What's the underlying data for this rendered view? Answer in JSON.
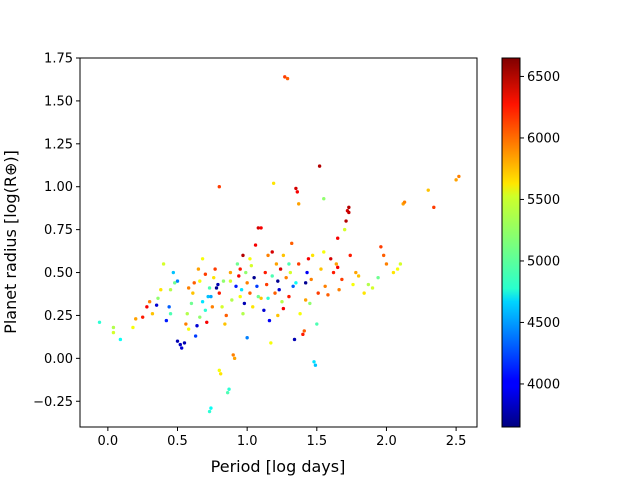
{
  "chart_data": {
    "type": "scatter",
    "xlabel": "Period [log days]",
    "ylabel": "Planet radius [log(R⊕)]",
    "xlim": [
      -0.2,
      2.65
    ],
    "ylim": [
      -0.4,
      1.75
    ],
    "x_ticks": [
      0.0,
      0.5,
      1.0,
      1.5,
      2.0,
      2.5
    ],
    "x_tick_labels": [
      "0.0",
      "0.5",
      "1.0",
      "1.5",
      "2.0",
      "2.5"
    ],
    "y_ticks": [
      -0.25,
      0.0,
      0.25,
      0.5,
      0.75,
      1.0,
      1.25,
      1.5,
      1.75
    ],
    "y_tick_labels": [
      "−0.25",
      "0.00",
      "0.25",
      "0.50",
      "0.75",
      "1.00",
      "1.25",
      "1.50",
      "1.75"
    ],
    "colorbar": {
      "colormap": "jet",
      "range": [
        3650,
        6650
      ],
      "ticks": [
        4000,
        4500,
        5000,
        5500,
        6000,
        6500
      ],
      "tick_labels": [
        "4000",
        "4500",
        "5000",
        "5500",
        "6000",
        "6500"
      ]
    },
    "grid": false,
    "points": [
      [
        -0.06,
        0.21,
        4900
      ],
      [
        0.04,
        0.18,
        5300
      ],
      [
        0.04,
        0.15,
        5400
      ],
      [
        0.09,
        0.11,
        4800
      ],
      [
        0.18,
        0.18,
        5500
      ],
      [
        0.2,
        0.23,
        5800
      ],
      [
        0.25,
        0.24,
        6200
      ],
      [
        0.28,
        0.3,
        6300
      ],
      [
        0.3,
        0.33,
        5900
      ],
      [
        0.32,
        0.26,
        5700
      ],
      [
        0.35,
        0.31,
        3900
      ],
      [
        0.36,
        0.35,
        5200
      ],
      [
        0.38,
        0.4,
        5600
      ],
      [
        0.4,
        0.55,
        5400
      ],
      [
        0.42,
        0.22,
        4100
      ],
      [
        0.44,
        0.3,
        4300
      ],
      [
        0.45,
        0.26,
        5000
      ],
      [
        0.47,
        0.5,
        4600
      ],
      [
        0.48,
        0.44,
        5100
      ],
      [
        0.5,
        0.45,
        4400
      ],
      [
        0.5,
        0.1,
        3800
      ],
      [
        0.52,
        0.08,
        3850
      ],
      [
        0.53,
        0.06,
        3900
      ],
      [
        0.55,
        0.09,
        3800
      ],
      [
        0.56,
        0.2,
        5900
      ],
      [
        0.57,
        0.26,
        5300
      ],
      [
        0.58,
        0.17,
        5500
      ],
      [
        0.6,
        0.32,
        5100
      ],
      [
        0.61,
        0.38,
        5700
      ],
      [
        0.62,
        0.44,
        6000
      ],
      [
        0.63,
        0.13,
        4200
      ],
      [
        0.64,
        0.19,
        3900
      ],
      [
        0.65,
        0.52,
        5800
      ],
      [
        0.66,
        0.24,
        5200
      ],
      [
        0.68,
        0.58,
        5500
      ],
      [
        0.68,
        0.33,
        4700
      ],
      [
        0.7,
        0.28,
        4900
      ],
      [
        0.71,
        0.21,
        6300
      ],
      [
        0.72,
        0.36,
        4600
      ],
      [
        0.73,
        0.41,
        5000
      ],
      [
        0.73,
        -0.31,
        4900
      ],
      [
        0.74,
        -0.29,
        4800
      ],
      [
        0.75,
        0.3,
        5900
      ],
      [
        0.76,
        0.47,
        5600
      ],
      [
        0.77,
        0.52,
        6100
      ],
      [
        0.78,
        0.41,
        3700
      ],
      [
        0.79,
        0.43,
        3800
      ],
      [
        0.8,
        0.38,
        6200
      ],
      [
        0.8,
        -0.07,
        5500
      ],
      [
        0.81,
        -0.09,
        5600
      ],
      [
        0.8,
        1.0,
        6100
      ],
      [
        0.82,
        0.3,
        5400
      ],
      [
        0.83,
        0.45,
        5200
      ],
      [
        0.84,
        0.2,
        5700
      ],
      [
        0.85,
        0.25,
        6000
      ],
      [
        0.86,
        -0.2,
        5000
      ],
      [
        0.87,
        -0.18,
        4900
      ],
      [
        0.88,
        0.5,
        5800
      ],
      [
        0.89,
        0.34,
        5300
      ],
      [
        0.9,
        0.02,
        5900
      ],
      [
        0.91,
        0.0,
        5800
      ],
      [
        0.92,
        0.42,
        4100
      ],
      [
        0.93,
        0.55,
        5100
      ],
      [
        0.94,
        0.48,
        6300
      ],
      [
        0.95,
        0.36,
        5500
      ],
      [
        0.96,
        0.4,
        4700
      ],
      [
        0.97,
        0.6,
        6500
      ],
      [
        0.98,
        0.32,
        3800
      ],
      [
        0.99,
        0.5,
        5200
      ],
      [
        1.0,
        0.44,
        5900
      ],
      [
        1.0,
        0.12,
        4400
      ],
      [
        1.02,
        0.38,
        6000
      ],
      [
        1.03,
        0.54,
        5400
      ],
      [
        1.04,
        0.3,
        5600
      ],
      [
        1.05,
        0.47,
        3700
      ],
      [
        1.06,
        0.66,
        6300
      ],
      [
        1.07,
        0.42,
        4200
      ],
      [
        1.08,
        0.76,
        6400
      ],
      [
        1.1,
        0.76,
        6300
      ],
      [
        1.1,
        0.35,
        5700
      ],
      [
        1.12,
        0.28,
        3900
      ],
      [
        1.13,
        0.5,
        6200
      ],
      [
        1.14,
        0.43,
        6100
      ],
      [
        1.15,
        0.6,
        5900
      ],
      [
        1.16,
        0.22,
        4000
      ],
      [
        1.17,
        0.09,
        5500
      ],
      [
        1.18,
        0.48,
        5000
      ],
      [
        1.19,
        1.02,
        5600
      ],
      [
        1.2,
        0.38,
        6000
      ],
      [
        1.21,
        0.55,
        5800
      ],
      [
        1.22,
        0.45,
        3700
      ],
      [
        1.23,
        0.4,
        3900
      ],
      [
        1.24,
        0.52,
        6400
      ],
      [
        1.25,
        0.33,
        5300
      ],
      [
        1.26,
        0.6,
        5700
      ],
      [
        1.27,
        1.64,
        6100
      ],
      [
        1.29,
        1.63,
        6000
      ],
      [
        1.28,
        0.47,
        5900
      ],
      [
        1.3,
        0.36,
        6200
      ],
      [
        1.31,
        0.5,
        5400
      ],
      [
        1.32,
        0.67,
        6000
      ],
      [
        1.33,
        0.42,
        4300
      ],
      [
        1.34,
        0.11,
        3800
      ],
      [
        1.35,
        0.99,
        6400
      ],
      [
        1.36,
        0.97,
        6300
      ],
      [
        1.37,
        0.9,
        5800
      ],
      [
        1.37,
        0.55,
        6100
      ],
      [
        1.38,
        0.26,
        5500
      ],
      [
        1.4,
        0.14,
        6200
      ],
      [
        1.41,
        0.16,
        6000
      ],
      [
        1.42,
        0.44,
        3700
      ],
      [
        1.43,
        0.5,
        4000
      ],
      [
        1.44,
        0.58,
        6300
      ],
      [
        1.45,
        0.32,
        5200
      ],
      [
        1.46,
        0.46,
        5900
      ],
      [
        1.47,
        0.6,
        5600
      ],
      [
        1.48,
        -0.02,
        4700
      ],
      [
        1.49,
        -0.04,
        4600
      ],
      [
        1.5,
        0.2,
        5000
      ],
      [
        1.51,
        0.38,
        6100
      ],
      [
        1.52,
        1.12,
        6500
      ],
      [
        1.53,
        0.52,
        5700
      ],
      [
        1.55,
        0.93,
        5200
      ],
      [
        1.56,
        0.42,
        5900
      ],
      [
        1.58,
        0.37,
        6000
      ],
      [
        1.6,
        0.58,
        6400
      ],
      [
        1.62,
        0.5,
        6200
      ],
      [
        1.64,
        0.55,
        5800
      ],
      [
        1.65,
        0.7,
        6300
      ],
      [
        1.66,
        0.4,
        5900
      ],
      [
        1.68,
        0.46,
        6100
      ],
      [
        1.7,
        0.75,
        5400
      ],
      [
        1.71,
        0.8,
        6500
      ],
      [
        1.72,
        0.86,
        6400
      ],
      [
        1.73,
        0.85,
        6450
      ],
      [
        1.73,
        0.88,
        6500
      ],
      [
        1.74,
        0.6,
        6200
      ],
      [
        1.76,
        0.43,
        5500
      ],
      [
        1.78,
        0.5,
        5800
      ],
      [
        1.8,
        0.48,
        5700
      ],
      [
        1.84,
        0.38,
        5600
      ],
      [
        1.87,
        0.43,
        5300
      ],
      [
        1.9,
        0.41,
        5400
      ],
      [
        1.94,
        0.47,
        5100
      ],
      [
        1.96,
        0.65,
        6100
      ],
      [
        1.98,
        0.6,
        6000
      ],
      [
        2.0,
        0.55,
        5900
      ],
      [
        2.05,
        0.5,
        5600
      ],
      [
        2.08,
        0.52,
        5500
      ],
      [
        2.1,
        0.55,
        5400
      ],
      [
        2.12,
        0.9,
        5800
      ],
      [
        2.13,
        0.91,
        5900
      ],
      [
        2.3,
        0.98,
        5700
      ],
      [
        2.34,
        0.88,
        6100
      ],
      [
        2.5,
        1.04,
        5800
      ],
      [
        2.52,
        1.06,
        5900
      ],
      [
        1.08,
        0.36,
        5100
      ],
      [
        0.97,
        0.26,
        5300
      ],
      [
        1.15,
        0.35,
        4900
      ],
      [
        0.74,
        0.36,
        4500
      ],
      [
        0.88,
        0.45,
        5400
      ],
      [
        1.22,
        0.25,
        5700
      ],
      [
        0.58,
        0.41,
        5900
      ],
      [
        0.66,
        0.45,
        5500
      ],
      [
        1.42,
        0.34,
        5800
      ],
      [
        1.3,
        0.55,
        5000
      ],
      [
        0.45,
        0.4,
        5300
      ],
      [
        1.65,
        0.53,
        6300
      ],
      [
        1.55,
        0.62,
        5500
      ],
      [
        1.18,
        0.62,
        6400
      ],
      [
        0.95,
        0.52,
        6200
      ],
      [
        0.7,
        0.49,
        6100
      ],
      [
        1.35,
        0.44,
        4800
      ],
      [
        1.02,
        0.58,
        5500
      ],
      [
        1.26,
        0.29,
        6300
      ]
    ]
  }
}
